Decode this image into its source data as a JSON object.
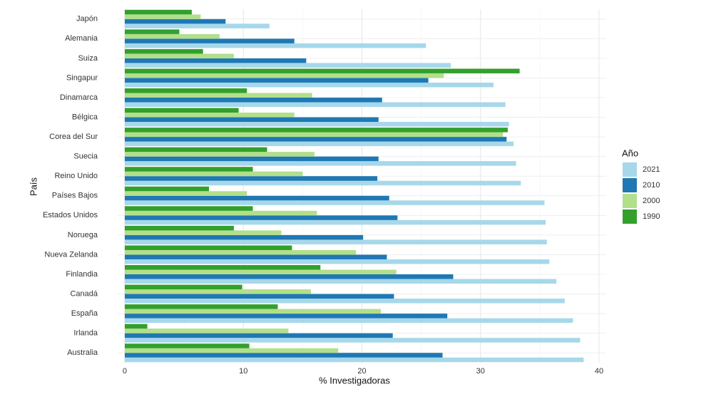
{
  "chart_data": {
    "type": "hbar",
    "x_label": "% Investigadoras",
    "y_label": "País",
    "legend_title": "Año",
    "categories": [
      "Japón",
      "Alemania",
      "Suiza",
      "Singapur",
      "Dinamarca",
      "Bélgica",
      "Corea del Sur",
      "Suecia",
      "Reino Unido",
      "Países Bajos",
      "Estados Unidos",
      "Noruega",
      "Nueva Zelanda",
      "Finlandia",
      "Canadá",
      "España",
      "Irlanda",
      "Australia"
    ],
    "series": [
      {
        "name": "2021",
        "color": "#a6d8ea",
        "values": [
          12.2,
          25.4,
          27.5,
          31.1,
          32.1,
          32.4,
          32.8,
          33.0,
          33.4,
          35.4,
          35.5,
          35.6,
          35.8,
          36.4,
          37.1,
          37.8,
          38.4,
          38.7
        ]
      },
      {
        "name": "2010",
        "color": "#1f78b4",
        "values": [
          8.5,
          14.3,
          15.3,
          25.6,
          21.7,
          21.4,
          32.2,
          21.4,
          21.3,
          22.3,
          23.0,
          20.1,
          22.1,
          27.7,
          22.7,
          27.2,
          22.6,
          26.8
        ]
      },
      {
        "name": "2000",
        "color": "#b2df8a",
        "values": [
          6.4,
          8.0,
          9.2,
          26.9,
          15.8,
          14.3,
          31.9,
          16.0,
          15.0,
          10.3,
          16.2,
          13.2,
          19.5,
          22.9,
          15.7,
          21.6,
          13.8,
          18.0
        ]
      },
      {
        "name": "1990",
        "color": "#33a02c",
        "values": [
          5.65,
          4.6,
          6.6,
          33.3,
          10.3,
          9.6,
          32.3,
          12.0,
          10.8,
          7.1,
          10.8,
          9.2,
          14.1,
          16.5,
          9.9,
          12.9,
          1.9,
          10.5
        ]
      }
    ],
    "xlim": [
      -0.6,
      40.6
    ],
    "xticks": [
      0,
      10,
      20,
      30,
      40
    ],
    "grid": true
  }
}
